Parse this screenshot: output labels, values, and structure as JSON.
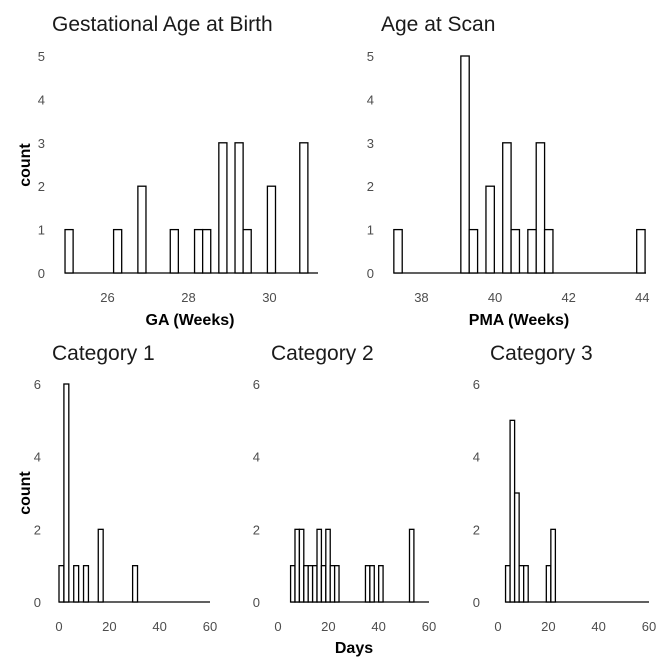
{
  "chart_data": [
    {
      "type": "histogram",
      "title": "Gestational Age at Birth",
      "xlabel": "GA (Weeks)",
      "ylabel": "count",
      "x_ticks": [
        26,
        28,
        30
      ],
      "y_ticks": [
        0,
        1,
        2,
        3,
        4,
        5
      ],
      "xlim": [
        24.9,
        31.2
      ],
      "ylim": [
        0,
        5
      ],
      "bin_start": 24.95,
      "bin_width": 0.2,
      "counts": [
        1,
        0,
        0,
        0,
        0,
        0,
        1,
        0,
        0,
        2,
        0,
        0,
        0,
        1,
        0,
        0,
        1,
        1,
        0,
        3,
        0,
        3,
        1,
        0,
        0,
        2,
        0,
        0,
        0,
        3
      ]
    },
    {
      "type": "histogram",
      "title": "Age at Scan",
      "xlabel": "PMA (Weeks)",
      "ylabel": "",
      "x_ticks": [
        38,
        40,
        42,
        44
      ],
      "y_ticks": [
        0,
        1,
        2,
        3,
        4,
        5
      ],
      "xlim": [
        37.2,
        44.1
      ],
      "ylim": [
        0,
        5
      ],
      "bin_start": 37.25,
      "bin_width": 0.2275,
      "counts": [
        1,
        0,
        0,
        0,
        0,
        0,
        0,
        0,
        5,
        1,
        0,
        2,
        0,
        3,
        1,
        0,
        1,
        3,
        1,
        0,
        0,
        0,
        0,
        0,
        0,
        0,
        0,
        0,
        0,
        1
      ]
    },
    {
      "type": "histogram",
      "title": "Category 1",
      "xlabel": "",
      "ylabel": "count",
      "x_ticks": [
        0,
        20,
        40,
        60
      ],
      "y_ticks": [
        0,
        2,
        4,
        6
      ],
      "xlim": [
        0,
        60
      ],
      "ylim": [
        0,
        6
      ],
      "bin_start": 0,
      "bin_width": 1.95,
      "counts": [
        1,
        6,
        0,
        1,
        0,
        1,
        0,
        0,
        2,
        0,
        0,
        0,
        0,
        0,
        0,
        1,
        0,
        0,
        0,
        0,
        0,
        0,
        0,
        0,
        0,
        0,
        0,
        0,
        0,
        0
      ]
    },
    {
      "type": "histogram",
      "title": "Category 2",
      "xlabel": "Days",
      "ylabel": "",
      "x_ticks": [
        0,
        20,
        40,
        60
      ],
      "y_ticks": [
        0,
        2,
        4,
        6
      ],
      "xlim": [
        0,
        60
      ],
      "ylim": [
        0,
        6
      ],
      "bin_start": 5,
      "bin_width": 1.75,
      "counts": [
        1,
        2,
        2,
        1,
        1,
        1,
        2,
        1,
        2,
        1,
        1,
        0,
        0,
        0,
        0,
        0,
        0,
        1,
        1,
        0,
        1,
        0,
        0,
        0,
        0,
        0,
        0,
        2
      ]
    },
    {
      "type": "histogram",
      "title": "Category 3",
      "xlabel": "",
      "ylabel": "",
      "x_ticks": [
        0,
        20,
        40,
        60
      ],
      "y_ticks": [
        0,
        2,
        4,
        6
      ],
      "xlim": [
        0,
        60
      ],
      "ylim": [
        0,
        6
      ],
      "bin_start": 3,
      "bin_width": 1.8,
      "counts": [
        1,
        5,
        3,
        1,
        1,
        0,
        0,
        0,
        0,
        1,
        2
      ]
    }
  ]
}
